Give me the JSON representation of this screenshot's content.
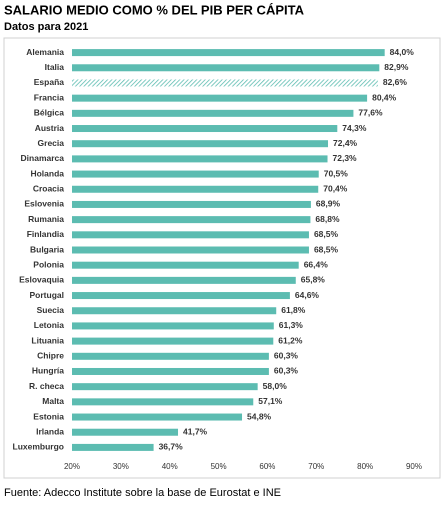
{
  "chart_data": {
    "type": "hbar",
    "title": "SALARIO MEDIO COMO % DEL PIB PER CÁPITA",
    "subtitle": "Datos para 2021",
    "source": "Fuente: Adecco Institute sobre la base de Eurostat e INE",
    "categories": [
      "Alemania",
      "Italia",
      "España",
      "Francia",
      "Bélgica",
      "Austria",
      "Grecia",
      "Dinamarca",
      "Holanda",
      "Croacia",
      "Eslovenia",
      "Rumania",
      "Finlandia",
      "Bulgaria",
      "Polonia",
      "Eslovaquia",
      "Portugal",
      "Suecia",
      "Letonia",
      "Lituania",
      "Chipre",
      "Hungría",
      "R. checa",
      "Malta",
      "Estonia",
      "Irlanda",
      "Luxemburgo"
    ],
    "values": [
      84.0,
      82.9,
      82.6,
      80.4,
      77.6,
      74.3,
      72.4,
      72.3,
      70.5,
      70.4,
      68.9,
      68.8,
      68.5,
      68.5,
      66.4,
      65.8,
      64.6,
      61.8,
      61.3,
      61.2,
      60.3,
      60.3,
      58.0,
      57.1,
      54.8,
      41.7,
      36.7
    ],
    "value_labels": [
      "84,0%",
      "82,9%",
      "82,6%",
      "80,4%",
      "77,6%",
      "74,3%",
      "72,4%",
      "72,3%",
      "70,5%",
      "70,4%",
      "68,9%",
      "68,8%",
      "68,5%",
      "68,5%",
      "66,4%",
      "65,8%",
      "64,6%",
      "61,8%",
      "61,3%",
      "61,2%",
      "60,3%",
      "60,3%",
      "58,0%",
      "57,1%",
      "54,8%",
      "41,7%",
      "36,7%"
    ],
    "color": "#5cbcb1",
    "highlight": "España",
    "xlim": [
      20,
      90
    ],
    "xticks": [
      {
        "value": 20,
        "label": "20%"
      },
      {
        "value": 30,
        "label": "30%"
      },
      {
        "value": 40,
        "label": "40%"
      },
      {
        "value": 50,
        "label": "50%"
      },
      {
        "value": 60,
        "label": "60%"
      },
      {
        "value": 70,
        "label": "70%"
      },
      {
        "value": 80,
        "label": "80%"
      },
      {
        "value": 90,
        "label": "90%"
      }
    ],
    "grid": false
  }
}
